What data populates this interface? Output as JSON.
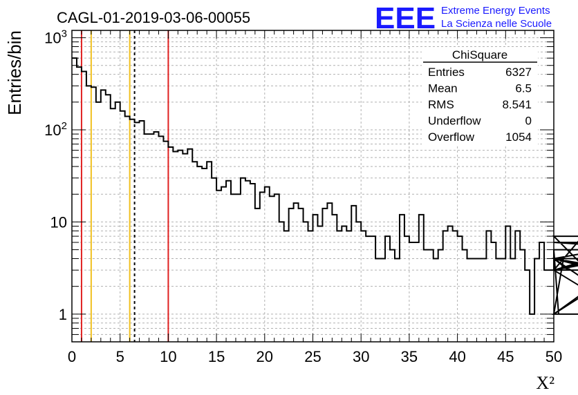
{
  "logo": {
    "mark": "EEE",
    "line1": "Extreme Energy Events",
    "line2": "La Scienza nelle Scuole",
    "color": "#1a1aff"
  },
  "stats": {
    "title": "ChiSquare",
    "rows": [
      {
        "label": "Entries",
        "value": "6327"
      },
      {
        "label": "Mean",
        "value": "6.5"
      },
      {
        "label": "RMS",
        "value": "8.541"
      },
      {
        "label": "Underflow",
        "value": "0"
      },
      {
        "label": "Overflow",
        "value": "1054"
      }
    ]
  },
  "chart_data": {
    "type": "histogram",
    "title": "CAGL-01-2019-03-06-00055",
    "xlabel": "X²",
    "ylabel": "Entries/bin",
    "xlim": [
      0,
      50
    ],
    "ylim": [
      0.5,
      1200
    ],
    "y_scale": "log",
    "grid": true,
    "bin_width": 0.5,
    "x_ticks": [
      "0",
      "5",
      "10",
      "15",
      "20",
      "25",
      "30",
      "35",
      "40",
      "45",
      "50"
    ],
    "y_ticks": [
      {
        "value": 1,
        "label": "1"
      },
      {
        "value": 10,
        "label": "10"
      },
      {
        "value": 100,
        "label": "10²"
      },
      {
        "value": 1000,
        "label": "10³"
      }
    ],
    "values": [
      600,
      480,
      430,
      300,
      290,
      200,
      270,
      240,
      170,
      200,
      160,
      140,
      130,
      120,
      125,
      90,
      90,
      95,
      85,
      75,
      65,
      58,
      60,
      55,
      62,
      45,
      40,
      38,
      45,
      30,
      22,
      24,
      28,
      20,
      20,
      30,
      28,
      26,
      14,
      21,
      24,
      19,
      20,
      10,
      8,
      14,
      16,
      14,
      10,
      8,
      12,
      9,
      14,
      16,
      12,
      8,
      9,
      8,
      15,
      10,
      8,
      7,
      7,
      4,
      4,
      7,
      5,
      4,
      12,
      7,
      6,
      6,
      12,
      5,
      5,
      4,
      5,
      8,
      9,
      8,
      7,
      5,
      4,
      4,
      4,
      4,
      8,
      6,
      4,
      4,
      9,
      4,
      8,
      5,
      3,
      1,
      4,
      6,
      3,
      3,
      5,
      1,
      4,
      3,
      3,
      3,
      7,
      3,
      4,
      3,
      4,
      4,
      3,
      4,
      3,
      1,
      4,
      1,
      4,
      6,
      6,
      6,
      5,
      5,
      5,
      5
    ],
    "vertical_lines": [
      {
        "x": 1,
        "color": "#e02020",
        "style": "solid"
      },
      {
        "x": 2,
        "color": "#f0c020",
        "style": "solid"
      },
      {
        "x": 6,
        "color": "#f0c020",
        "style": "solid"
      },
      {
        "x": 6.5,
        "color": "#000000",
        "style": "dashed"
      },
      {
        "x": 10,
        "color": "#e02020",
        "style": "solid"
      }
    ]
  }
}
